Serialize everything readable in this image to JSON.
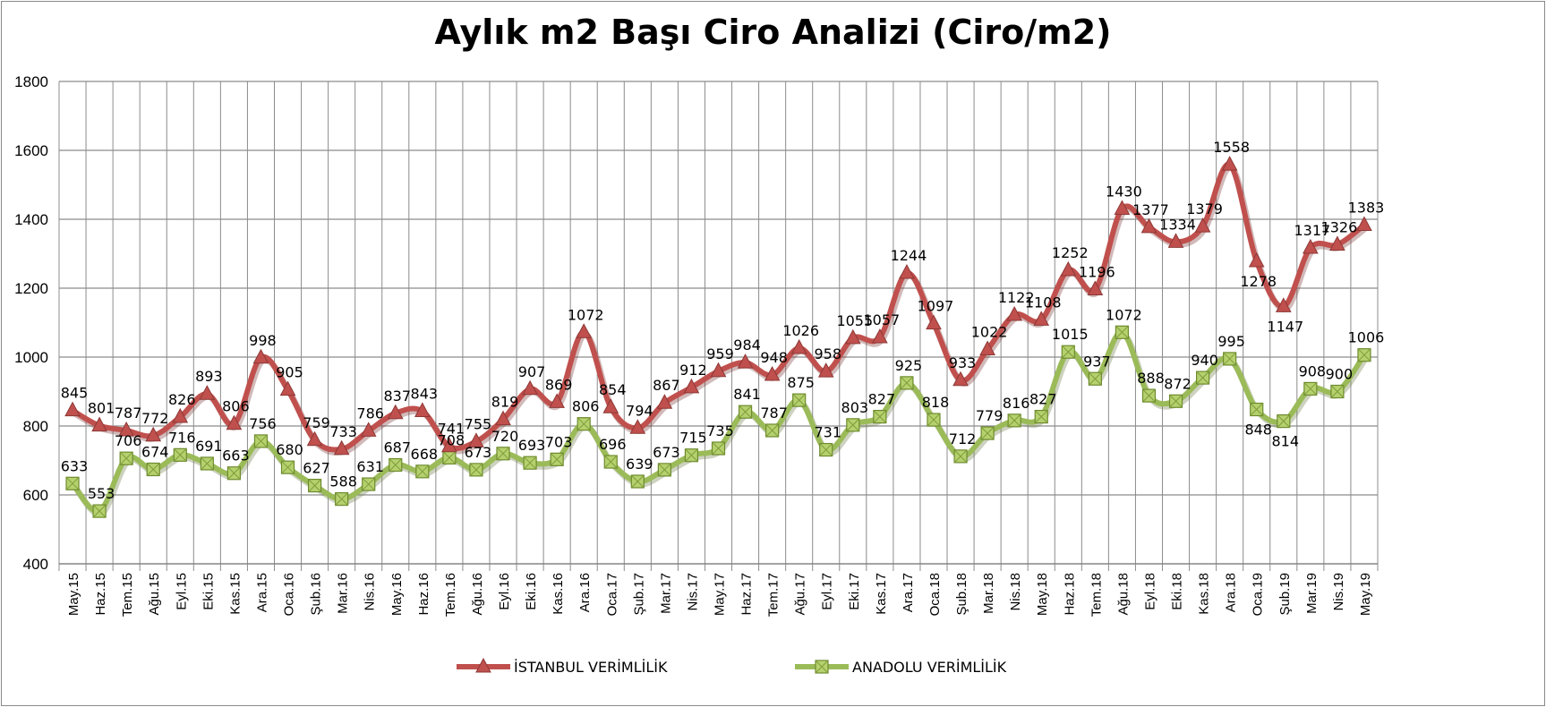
{
  "chart_data": {
    "type": "line",
    "title": "Aylık m2 Başı Ciro Analizi (Ciro/m2)",
    "xlabel": "",
    "ylabel": "",
    "ylim": [
      400,
      1800
    ],
    "yticks": [
      400,
      600,
      800,
      1000,
      1200,
      1400,
      1600,
      1800
    ],
    "grid": true,
    "legend_position": "bottom",
    "categories": [
      "May.15",
      "Haz.15",
      "Tem.15",
      "Ağu.15",
      "Eyl.15",
      "Eki.15",
      "Kas.15",
      "Ara.15",
      "Oca.16",
      "Şub.16",
      "Mar.16",
      "Nis.16",
      "May.16",
      "Haz.16",
      "Tem.16",
      "Ağu.16",
      "Eyl.16",
      "Eki.16",
      "Kas.16",
      "Ara.16",
      "Oca.17",
      "Şub.17",
      "Mar.17",
      "Nis.17",
      "May.17",
      "Haz.17",
      "Tem.17",
      "Ağu.17",
      "Eyl.17",
      "Eki.17",
      "Kas.17",
      "Ara.17",
      "Oca.18",
      "Şub.18",
      "Mar.18",
      "Nis.18",
      "May.18",
      "Haz.18",
      "Tem.18",
      "Ağu.18",
      "Eyl.18",
      "Eki.18",
      "Kas.18",
      "Ara.18",
      "Oca.19",
      "Şub.19",
      "Mar.19",
      "Nis.19",
      "May.19"
    ],
    "series": [
      {
        "name": "İSTANBUL VERİMLİLİK",
        "color": "#c0504d",
        "marker": "triangle",
        "values": [
          845,
          801,
          787,
          772,
          826,
          893,
          806,
          998,
          905,
          759,
          733,
          786,
          837,
          843,
          741,
          755,
          819,
          907,
          869,
          1072,
          854,
          794,
          867,
          912,
          959,
          984,
          948,
          1026,
          958,
          1055,
          1057,
          1244,
          1097,
          933,
          1022,
          1122,
          1108,
          1252,
          1196,
          1430,
          1377,
          1334,
          1379,
          1558,
          1278,
          1147,
          1317,
          1326,
          1383
        ]
      },
      {
        "name": "ANADOLU VERİMLİLİK",
        "color": "#9bbb59",
        "marker": "square",
        "values": [
          633,
          553,
          706,
          674,
          716,
          691,
          663,
          756,
          680,
          627,
          588,
          631,
          687,
          668,
          708,
          673,
          720,
          693,
          703,
          806,
          696,
          639,
          673,
          715,
          735,
          841,
          787,
          875,
          731,
          803,
          827,
          925,
          818,
          712,
          779,
          816,
          827,
          1015,
          937,
          1072,
          888,
          872,
          940,
          995,
          848,
          814,
          908,
          900,
          1006
        ]
      }
    ]
  }
}
